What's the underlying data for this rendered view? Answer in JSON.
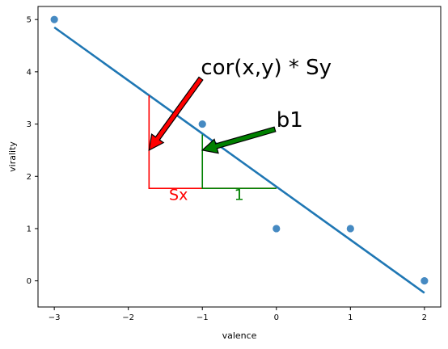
{
  "chart_data": {
    "type": "scatter",
    "title": "",
    "xlabel": "valence",
    "ylabel": "virality",
    "xlim": [
      -3.22,
      2.22
    ],
    "ylim": [
      -0.5,
      5.25
    ],
    "x_ticks": [
      -3,
      -2,
      -1,
      0,
      1,
      2
    ],
    "y_ticks": [
      0,
      1,
      2,
      3,
      4,
      5
    ],
    "grid": false,
    "points": [
      {
        "x": -3,
        "y": 5
      },
      {
        "x": -1,
        "y": 3
      },
      {
        "x": 0,
        "y": 1
      },
      {
        "x": 1,
        "y": 1
      },
      {
        "x": 2,
        "y": 0
      }
    ],
    "regression_line": {
      "x1": -3,
      "y1": 4.85,
      "x2": 2,
      "y2": -0.23
    },
    "annotations": {
      "red_triangle": {
        "x_left": -1.72,
        "x_right": 0,
        "y_base": 1.77,
        "y_top": 3.55,
        "color": "#ff0000"
      },
      "green_triangle": {
        "x_left": -1,
        "x_right": 0,
        "y_base": 1.77,
        "y_top": 2.8,
        "color": "#008000"
      },
      "sx_label": {
        "text": "Sx",
        "x": -1.45,
        "y": 1.55,
        "color": "#ff0000"
      },
      "one_label": {
        "text": "1",
        "x": -0.57,
        "y": 1.55,
        "color": "#008000"
      },
      "cor_label": {
        "text": "cor(x,y) * Sy",
        "x": -1.02,
        "y": 3.95
      },
      "b1_label": {
        "text": "b1",
        "x": 0,
        "y": 2.95
      },
      "red_arrow": {
        "x_from": -1.02,
        "y_from": 3.87,
        "x_to": -1.72,
        "y_to": 2.5,
        "color": "#ff0000"
      },
      "green_arrow": {
        "x_from": -0.02,
        "y_from": 2.9,
        "x_to": -1,
        "y_to": 2.5,
        "color": "#008000"
      }
    },
    "colors": {
      "points": "#3c84bf",
      "line": "#1f77b4"
    }
  }
}
